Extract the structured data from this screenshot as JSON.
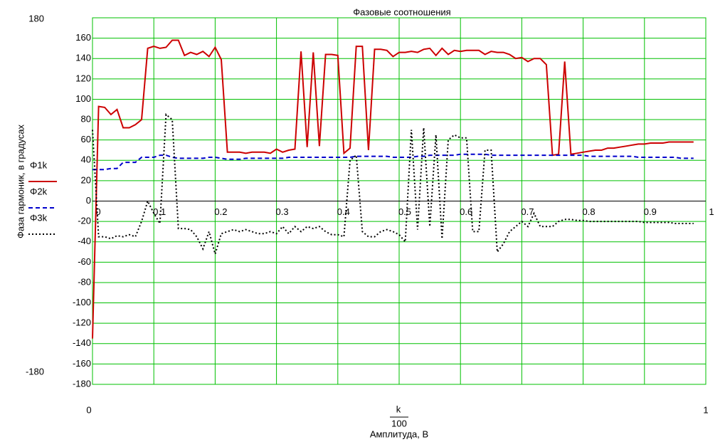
{
  "chart_data": {
    "type": "line",
    "title": "Фазовые соотношения",
    "y_label": "Фаза гармоник, в градусах",
    "x_label_numerator": "k",
    "x_label_denominator": "100",
    "x_label": "Амплитуда, В",
    "xlim": [
      0,
      1
    ],
    "ylim": [
      -180,
      180
    ],
    "xticks": [
      0,
      0.1,
      0.2,
      0.3,
      0.4,
      0.5,
      0.6,
      0.7,
      0.8,
      0.9,
      1
    ],
    "yticks": [
      -180,
      -160,
      -140,
      -120,
      -100,
      -80,
      -60,
      -40,
      -20,
      0,
      20,
      40,
      60,
      80,
      100,
      120,
      140,
      160
    ],
    "grid": true,
    "x": [
      0,
      0.01,
      0.02,
      0.03,
      0.04,
      0.05,
      0.06,
      0.07,
      0.08,
      0.09,
      0.1,
      0.11,
      0.12,
      0.13,
      0.14,
      0.15,
      0.16,
      0.17,
      0.18,
      0.19,
      0.2,
      0.21,
      0.22,
      0.23,
      0.24,
      0.25,
      0.26,
      0.27,
      0.28,
      0.29,
      0.3,
      0.31,
      0.32,
      0.33,
      0.34,
      0.35,
      0.36,
      0.37,
      0.38,
      0.39,
      0.4,
      0.41,
      0.42,
      0.43,
      0.44,
      0.45,
      0.46,
      0.47,
      0.48,
      0.49,
      0.5,
      0.51,
      0.52,
      0.53,
      0.54,
      0.55,
      0.56,
      0.57,
      0.58,
      0.59,
      0.6,
      0.61,
      0.62,
      0.63,
      0.64,
      0.65,
      0.66,
      0.67,
      0.68,
      0.69,
      0.7,
      0.71,
      0.72,
      0.73,
      0.74,
      0.75,
      0.76,
      0.77,
      0.78,
      0.79,
      0.8,
      0.81,
      0.82,
      0.83,
      0.84,
      0.85,
      0.86,
      0.87,
      0.88,
      0.89,
      0.9,
      0.91,
      0.92,
      0.93,
      0.94,
      0.95,
      0.96,
      0.97,
      0.98
    ],
    "series": [
      {
        "name": "Φ1k",
        "color": "#cc0000",
        "dash": "none",
        "values": [
          -135,
          93,
          92,
          85,
          90,
          72,
          72,
          75,
          80,
          150,
          152,
          150,
          151,
          158,
          158,
          143,
          146,
          144,
          147,
          142,
          151,
          139,
          48,
          48,
          48,
          47,
          48,
          48,
          48,
          47,
          51,
          48,
          50,
          51,
          147,
          53,
          146,
          54,
          144,
          144,
          143,
          47,
          52,
          152,
          152,
          50,
          149,
          149,
          148,
          142,
          146,
          146,
          147,
          146,
          149,
          150,
          143,
          150,
          144,
          148,
          147,
          148,
          148,
          148,
          144,
          147,
          146,
          146,
          144,
          140,
          141,
          137,
          140,
          140,
          134,
          45,
          46,
          137,
          46,
          47,
          48,
          49,
          50,
          50,
          52,
          52,
          53,
          54,
          55,
          56,
          56,
          57,
          57,
          57,
          58,
          58,
          58,
          58,
          58
        ]
      },
      {
        "name": "Φ2k",
        "color": "#0000cc",
        "dash": "6 4",
        "values": [
          31,
          31,
          31,
          32,
          32,
          38,
          38,
          38,
          43,
          43,
          43,
          45,
          45,
          43,
          42,
          42,
          42,
          42,
          42,
          43,
          43,
          42,
          41,
          41,
          41,
          42,
          42,
          42,
          42,
          42,
          42,
          42,
          43,
          43,
          43,
          43,
          43,
          43,
          43,
          43,
          43,
          43,
          43,
          44,
          44,
          44,
          44,
          44,
          44,
          43,
          43,
          43,
          43,
          44,
          44,
          45,
          45,
          45,
          45,
          45,
          46,
          46,
          46,
          46,
          46,
          45,
          45,
          45,
          45,
          45,
          45,
          45,
          45,
          45,
          45,
          45,
          45,
          45,
          45,
          45,
          45,
          44,
          44,
          44,
          44,
          44,
          44,
          44,
          44,
          43,
          43,
          43,
          43,
          43,
          43,
          43,
          42,
          42,
          42
        ]
      },
      {
        "name": "Φ3k",
        "color": "#000000",
        "dash": "2 3",
        "values": [
          70,
          -35,
          -35,
          -37,
          -34,
          -35,
          -33,
          -35,
          -20,
          0,
          -12,
          -22,
          85,
          80,
          -27,
          -27,
          -28,
          -35,
          -47,
          -30,
          -52,
          -32,
          -30,
          -28,
          -30,
          -28,
          -30,
          -32,
          -32,
          -30,
          -32,
          -25,
          -32,
          -25,
          -30,
          -25,
          -27,
          -25,
          -30,
          -33,
          -33,
          -35,
          40,
          45,
          -30,
          -35,
          -35,
          -30,
          -28,
          -30,
          -33,
          -40,
          70,
          -28,
          72,
          -25,
          65,
          -37,
          60,
          65,
          62,
          62,
          -30,
          -30,
          50,
          50,
          -50,
          -42,
          -30,
          -25,
          -20,
          -25,
          -12,
          -25,
          -25,
          -25,
          -20,
          -18,
          -18,
          -19,
          -19,
          -20,
          -20,
          -20,
          -20,
          -20,
          -20,
          -20,
          -20,
          -20,
          -21,
          -21,
          -21,
          -21,
          -21,
          -22,
          -22,
          -22,
          -22
        ]
      }
    ]
  }
}
